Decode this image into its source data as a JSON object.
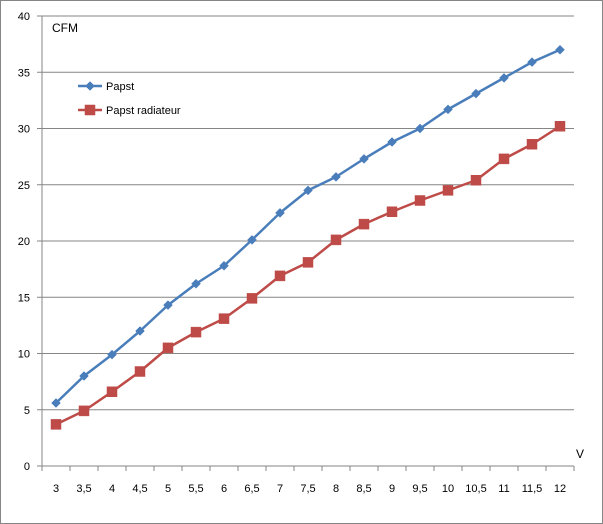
{
  "chart_data": {
    "type": "line",
    "title": "",
    "ylabel": "CFM",
    "xlabel": "V",
    "ylim": [
      0,
      40
    ],
    "y_ticks": [
      0,
      5,
      10,
      15,
      20,
      25,
      30,
      35,
      40
    ],
    "categories": [
      "3",
      "3,5",
      "4",
      "4,5",
      "5",
      "5,5",
      "6",
      "6,5",
      "7",
      "7,5",
      "8",
      "8,5",
      "9",
      "9,5",
      "10",
      "10,5",
      "11",
      "11,5",
      "12"
    ],
    "grid": "horizontal",
    "legend_position": "top-left",
    "series": [
      {
        "name": "Papst",
        "color": "#4a7ebb",
        "marker": "diamond",
        "values": [
          5.6,
          8.0,
          9.9,
          12.0,
          14.3,
          16.2,
          17.8,
          20.1,
          22.5,
          24.5,
          25.7,
          27.3,
          28.8,
          30.0,
          31.7,
          33.1,
          34.5,
          35.9,
          37.0
        ]
      },
      {
        "name": "Papst radiateur",
        "color": "#be4b48",
        "marker": "square",
        "values": [
          3.7,
          4.9,
          6.6,
          8.4,
          10.5,
          11.9,
          13.1,
          14.9,
          16.9,
          18.1,
          20.1,
          21.5,
          22.6,
          23.6,
          24.5,
          25.4,
          27.3,
          28.6,
          30.2
        ]
      }
    ]
  }
}
